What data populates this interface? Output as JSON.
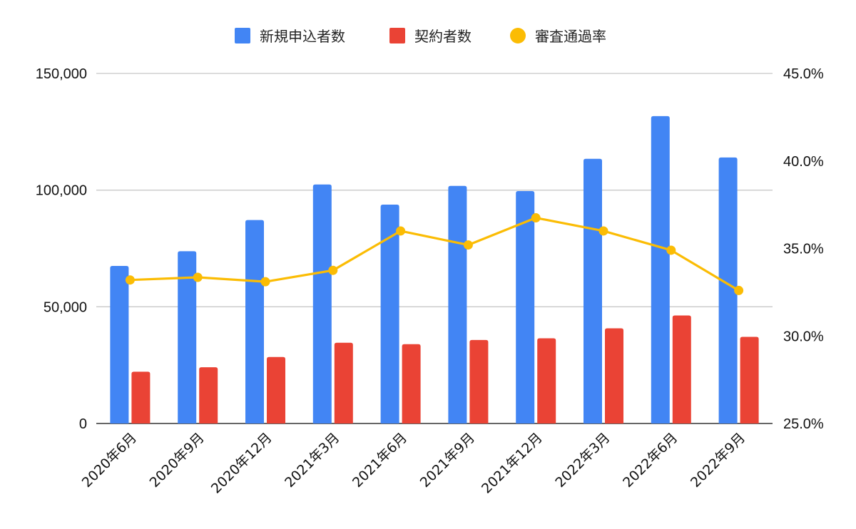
{
  "chart_data": {
    "type": "bar",
    "categories": [
      "2020年6月",
      "2020年9月",
      "2020年12月",
      "2021年3月",
      "2021年6月",
      "2021年9月",
      "2021年12月",
      "2022年3月",
      "2022年6月",
      "2022年9月"
    ],
    "series": [
      {
        "name": "新規申込者数",
        "type": "bar",
        "axis": "left",
        "color": "#4285F4",
        "values": [
          67500,
          73800,
          87200,
          102400,
          93800,
          101800,
          99600,
          113400,
          131700,
          114000
        ]
      },
      {
        "name": "契約者数",
        "type": "bar",
        "axis": "left",
        "color": "#EA4335",
        "values": [
          22200,
          24100,
          28500,
          34600,
          34000,
          35800,
          36500,
          40800,
          46300,
          37100
        ]
      },
      {
        "name": "審査通過率",
        "type": "line",
        "axis": "right",
        "color": "#FBBC04",
        "values": [
          0.332,
          0.3335,
          0.331,
          0.3375,
          0.36,
          0.352,
          0.3675,
          0.36,
          0.349,
          0.326
        ]
      }
    ],
    "y_left": {
      "lim": [
        0,
        150000
      ],
      "ticks": [
        0,
        50000,
        100000,
        150000
      ],
      "tick_labels": [
        "0",
        "50,000",
        "100,000",
        "150,000"
      ]
    },
    "y_right": {
      "lim": [
        0.25,
        0.45
      ],
      "ticks": [
        0.25,
        0.3,
        0.35,
        0.4,
        0.45
      ],
      "tick_labels": [
        "25.0%",
        "30.0%",
        "35.0%",
        "40.0%",
        "45.0%"
      ]
    },
    "legend_position": "top-center",
    "grid": true
  }
}
